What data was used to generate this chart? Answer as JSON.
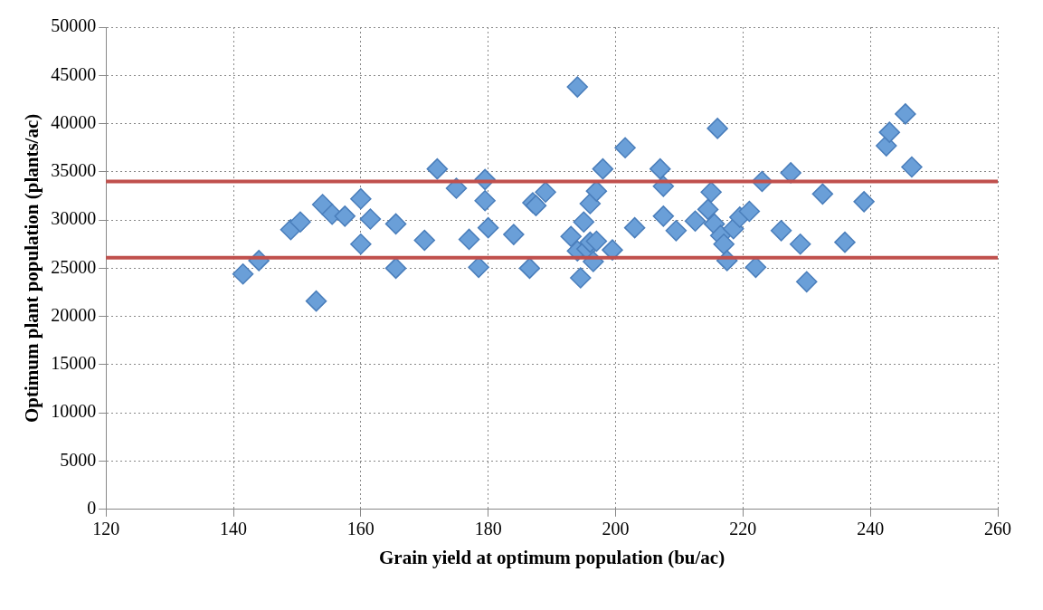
{
  "chart_data": {
    "type": "scatter",
    "xlabel": "Grain yield at optimum population (bu/ac)",
    "ylabel": "Optimum plant population (plants/ac)",
    "x": [
      141.5,
      144,
      149,
      150.5,
      153,
      154,
      155.5,
      157.5,
      160,
      160,
      161.5,
      165.5,
      165.5,
      170,
      172,
      175,
      177,
      178.5,
      179.5,
      179.5,
      180,
      184,
      186.5,
      187,
      187.5,
      189,
      193,
      194,
      194,
      194.5,
      195,
      195.5,
      196,
      196,
      196.5,
      197,
      197,
      198,
      199.5,
      201.5,
      203,
      207,
      207.5,
      207.5,
      209.5,
      212.5,
      214.5,
      215,
      215.5,
      216,
      216.5,
      217,
      217.5,
      218.5,
      219.5,
      221,
      222,
      223,
      226,
      227.5,
      229,
      230,
      232.5,
      236,
      239,
      242.5,
      243,
      245.5,
      246.5
    ],
    "values": [
      24400,
      25800,
      29000,
      29800,
      21600,
      31600,
      30600,
      30400,
      32200,
      27500,
      30100,
      25000,
      29600,
      27900,
      35300,
      33300,
      28000,
      25100,
      34200,
      32000,
      29200,
      28500,
      25000,
      31800,
      31500,
      32900,
      28300,
      43800,
      26800,
      24000,
      29800,
      27000,
      31700,
      27700,
      25700,
      33000,
      27800,
      35300,
      26900,
      37500,
      29200,
      35300,
      33500,
      30400,
      28900,
      29900,
      31100,
      32900,
      29600,
      39500,
      28400,
      27500,
      25800,
      29100,
      30300,
      30900,
      25100,
      34000,
      28900,
      34900,
      27500,
      23600,
      32700,
      27700,
      31900,
      37700,
      39100,
      41000,
      35500
    ],
    "color": "#6a9fd8",
    "marker": "diamond",
    "xlim": [
      120,
      260
    ],
    "xticks": [
      120,
      140,
      160,
      180,
      200,
      220,
      240,
      260
    ],
    "ylim": [
      0,
      50000
    ],
    "yticks": [
      0,
      5000,
      10000,
      15000,
      20000,
      25000,
      30000,
      35000,
      40000,
      45000,
      50000
    ],
    "grid": true,
    "ref_lines": [
      {
        "axis": "y",
        "value": 34000,
        "color": "#c0504d"
      },
      {
        "axis": "y",
        "value": 26100,
        "color": "#c0504d"
      }
    ]
  }
}
